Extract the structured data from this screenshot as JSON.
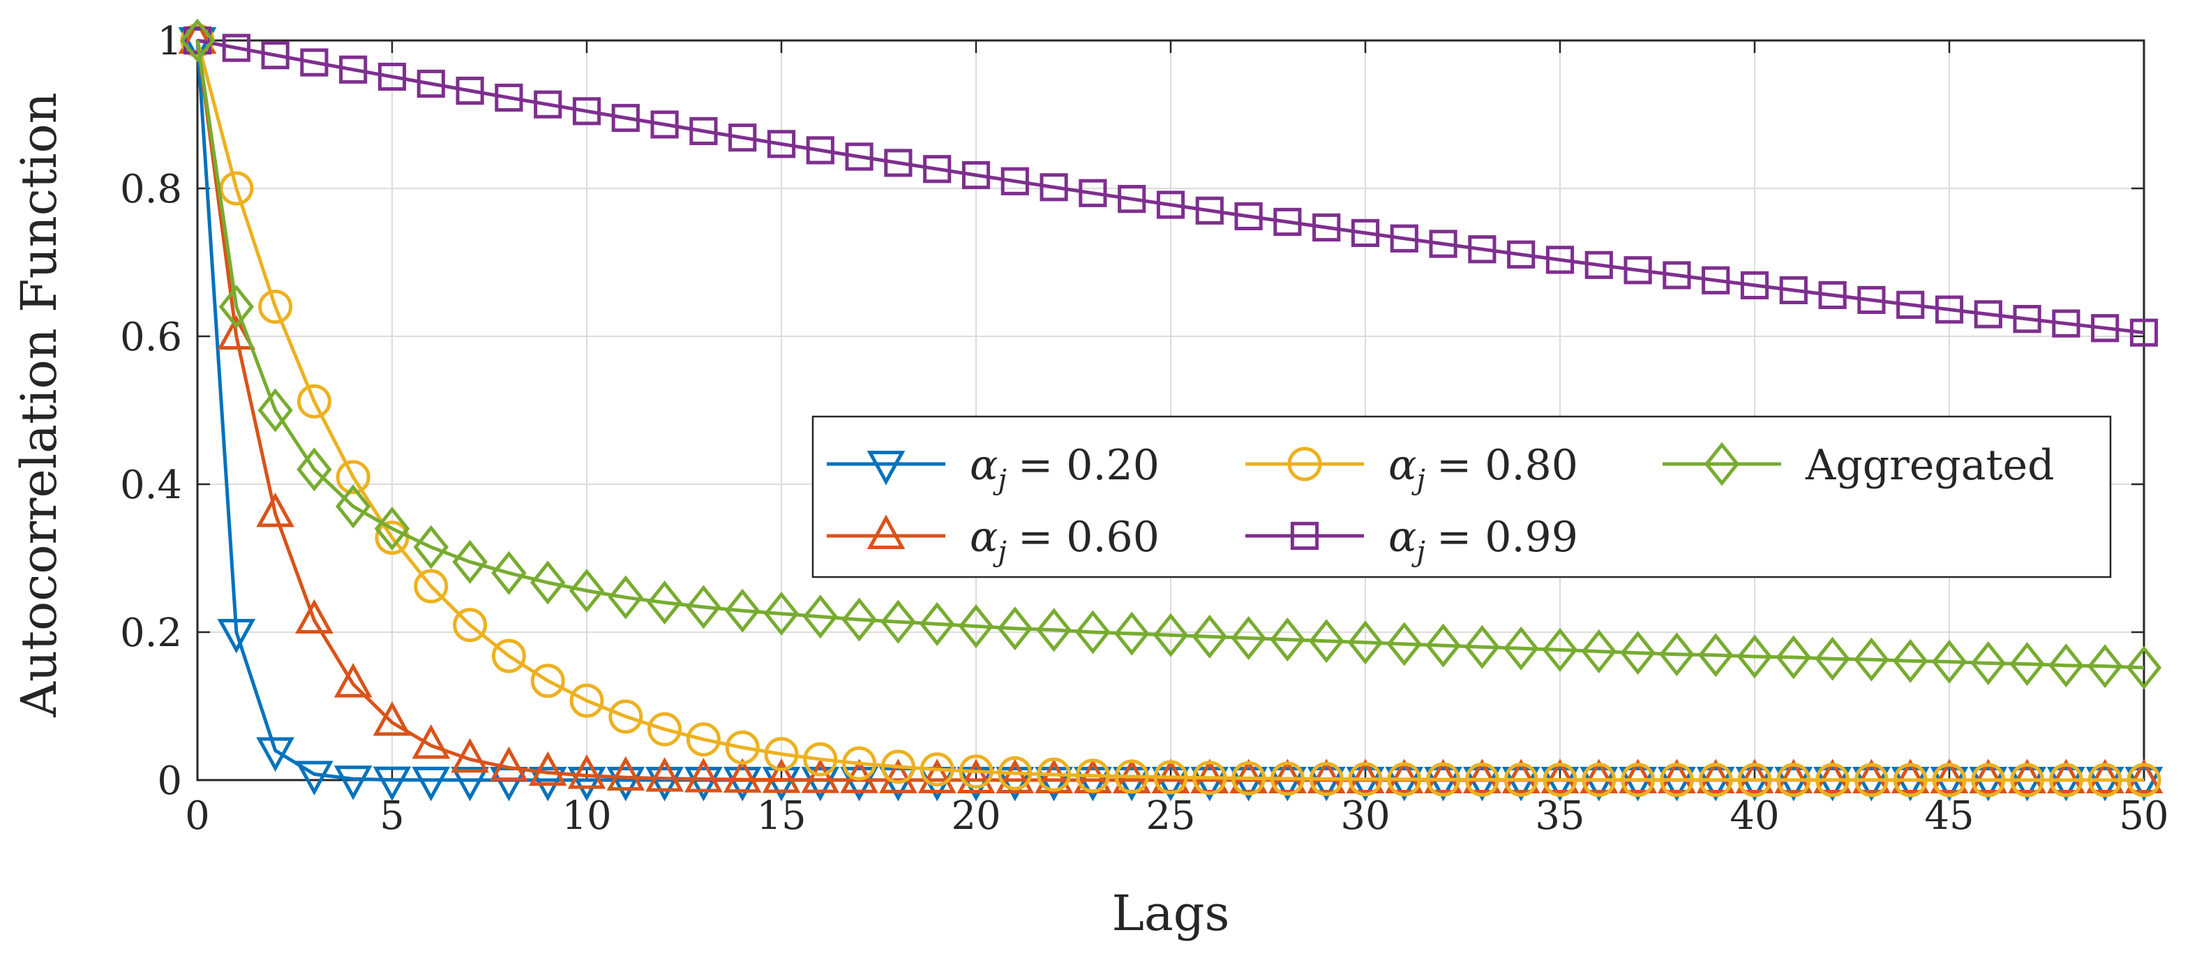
{
  "chart_data": {
    "type": "line",
    "title": "",
    "xlabel": "Lags",
    "ylabel": "Autocorrelation Function",
    "xlim": [
      0,
      50
    ],
    "ylim": [
      0,
      1
    ],
    "grid": true,
    "legend_position": "center-right",
    "xticks": [
      0,
      5,
      10,
      15,
      20,
      25,
      30,
      35,
      40,
      45,
      50
    ],
    "yticks": [
      0,
      0.2,
      0.4,
      0.6,
      0.8,
      1
    ],
    "xtick_labels": [
      "0",
      "5",
      "10",
      "15",
      "20",
      "25",
      "30",
      "35",
      "40",
      "45",
      "50"
    ],
    "ytick_labels": [
      "0",
      "0.2",
      "0.4",
      "0.6",
      "0.8",
      "1"
    ],
    "x": [
      0,
      1,
      2,
      3,
      4,
      5,
      6,
      7,
      8,
      9,
      10,
      11,
      12,
      13,
      14,
      15,
      16,
      17,
      18,
      19,
      20,
      21,
      22,
      23,
      24,
      25,
      26,
      27,
      28,
      29,
      30,
      31,
      32,
      33,
      34,
      35,
      36,
      37,
      38,
      39,
      40,
      41,
      42,
      43,
      44,
      45,
      46,
      47,
      48,
      49,
      50
    ],
    "series": [
      {
        "name": "α_j = 0.20",
        "legend_symbol": "α",
        "legend_subscript": "j",
        "legend_value": "= 0.20",
        "color": "#0072BD",
        "marker": "triangle-down",
        "values": [
          1.0,
          0.2,
          0.04,
          0.008,
          0.0016,
          0.0003,
          0.0001,
          0,
          0,
          0,
          0,
          0,
          0,
          0,
          0,
          0,
          0,
          0,
          0,
          0,
          0,
          0,
          0,
          0,
          0,
          0,
          0,
          0,
          0,
          0,
          0,
          0,
          0,
          0,
          0,
          0,
          0,
          0,
          0,
          0,
          0,
          0,
          0,
          0,
          0,
          0,
          0,
          0,
          0,
          0,
          0
        ]
      },
      {
        "name": "α_j = 0.60",
        "legend_symbol": "α",
        "legend_subscript": "j",
        "legend_value": "= 0.60",
        "color": "#D95319",
        "marker": "triangle-up",
        "values": [
          1.0,
          0.6,
          0.36,
          0.216,
          0.1296,
          0.0778,
          0.0467,
          0.028,
          0.0168,
          0.0101,
          0.006,
          0.0036,
          0.0022,
          0.0013,
          0.0008,
          0.0005,
          0.0003,
          0.0002,
          0.0001,
          0.0001,
          0,
          0,
          0,
          0,
          0,
          0,
          0,
          0,
          0,
          0,
          0,
          0,
          0,
          0,
          0,
          0,
          0,
          0,
          0,
          0,
          0,
          0,
          0,
          0,
          0,
          0,
          0,
          0,
          0,
          0,
          0
        ]
      },
      {
        "name": "α_j = 0.80",
        "legend_symbol": "α",
        "legend_subscript": "j",
        "legend_value": "= 0.80",
        "color": "#EDB120",
        "marker": "circle",
        "values": [
          1.0,
          0.8,
          0.64,
          0.512,
          0.4096,
          0.3277,
          0.2621,
          0.2097,
          0.1678,
          0.1342,
          0.1074,
          0.0859,
          0.0687,
          0.055,
          0.044,
          0.0352,
          0.0281,
          0.0225,
          0.018,
          0.0144,
          0.0115,
          0.0092,
          0.0074,
          0.0059,
          0.0047,
          0.0038,
          0.003,
          0.0024,
          0.0019,
          0.0015,
          0.0012,
          0.001,
          0.0008,
          0.0006,
          0.0005,
          0.0004,
          0.0003,
          0.0003,
          0.0002,
          0.0002,
          0.0001,
          0.0001,
          0.0001,
          0.0001,
          0,
          0,
          0,
          0,
          0,
          0,
          0
        ]
      },
      {
        "name": "α_j = 0.99",
        "legend_symbol": "α",
        "legend_subscript": "j",
        "legend_value": "= 0.99",
        "color": "#7E2F8E",
        "marker": "square",
        "values": [
          1.0,
          0.99,
          0.9801,
          0.9703,
          0.9606,
          0.951,
          0.9415,
          0.9321,
          0.9227,
          0.9135,
          0.9044,
          0.8953,
          0.8864,
          0.8775,
          0.8687,
          0.86,
          0.8515,
          0.8429,
          0.8345,
          0.8262,
          0.8179,
          0.8097,
          0.8016,
          0.7936,
          0.7857,
          0.7778,
          0.77,
          0.7623,
          0.7547,
          0.7472,
          0.7397,
          0.7323,
          0.725,
          0.7177,
          0.7106,
          0.7034,
          0.6964,
          0.6894,
          0.6826,
          0.6757,
          0.669,
          0.6623,
          0.6557,
          0.6491,
          0.6426,
          0.6362,
          0.6298,
          0.6235,
          0.6173,
          0.6111,
          0.605
        ]
      },
      {
        "name": "Aggregated",
        "legend_symbol": "",
        "legend_subscript": "",
        "legend_value": "Aggregated",
        "color": "#77AC30",
        "marker": "diamond",
        "values": [
          1.0,
          0.64,
          0.5,
          0.42,
          0.37,
          0.34,
          0.315,
          0.295,
          0.28,
          0.267,
          0.256,
          0.247,
          0.24,
          0.234,
          0.229,
          0.225,
          0.221,
          0.217,
          0.214,
          0.211,
          0.208,
          0.205,
          0.203,
          0.2,
          0.198,
          0.196,
          0.194,
          0.192,
          0.19,
          0.188,
          0.186,
          0.184,
          0.182,
          0.18,
          0.178,
          0.176,
          0.174,
          0.172,
          0.17,
          0.169,
          0.167,
          0.166,
          0.164,
          0.163,
          0.161,
          0.16,
          0.158,
          0.157,
          0.155,
          0.154,
          0.152
        ]
      }
    ]
  }
}
